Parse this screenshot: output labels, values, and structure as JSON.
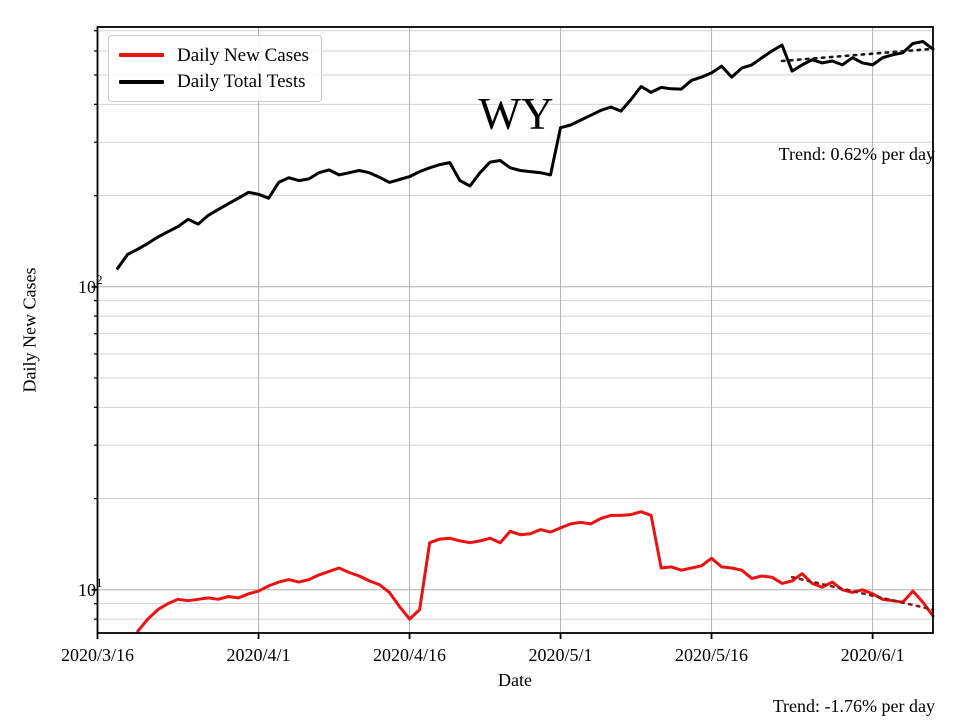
{
  "chart_data": {
    "type": "line",
    "title": "WY",
    "xlabel": "Date",
    "ylabel": "Daily New Cases",
    "yscale": "log",
    "ylim": [
      7.2,
      720
    ],
    "xlim_days": [
      0,
      83
    ],
    "x_start_date": "2020/3/16",
    "x_end_date": "2020/6/7",
    "grid": true,
    "legend_position": "upper left",
    "x_ticks": [
      {
        "label": "2020/3/16",
        "day": 0
      },
      {
        "label": "2020/4/1",
        "day": 16
      },
      {
        "label": "2020/4/16",
        "day": 31
      },
      {
        "label": "2020/5/1",
        "day": 46
      },
      {
        "label": "2020/5/16",
        "day": 61
      },
      {
        "label": "2020/6/1",
        "day": 77
      }
    ],
    "y_major_ticks": [
      {
        "value": 10,
        "base": "10",
        "exponent": "1"
      },
      {
        "value": 100,
        "base": "10",
        "exponent": "2"
      }
    ],
    "y_minor_ticks": [
      8,
      9,
      20,
      30,
      40,
      50,
      60,
      70,
      80,
      90,
      200,
      300,
      400,
      500,
      600,
      700
    ],
    "series": [
      {
        "name": "Daily New Cases",
        "color": "#ee1111",
        "width": 3,
        "style": "solid",
        "x0": 4,
        "y": [
          7.3,
          8.0,
          8.6,
          9.0,
          9.3,
          9.2,
          9.3,
          9.4,
          9.3,
          9.5,
          9.4,
          9.7,
          9.9,
          10.3,
          10.6,
          10.8,
          10.6,
          10.8,
          11.2,
          11.5,
          11.8,
          11.4,
          11.1,
          10.7,
          10.4,
          9.8,
          8.8,
          8.0,
          8.6,
          14.3,
          14.7,
          14.8,
          14.5,
          14.3,
          14.5,
          14.8,
          14.3,
          15.6,
          15.2,
          15.3,
          15.8,
          15.5,
          16.0,
          16.5,
          16.7,
          16.5,
          17.2,
          17.6,
          17.6,
          17.7,
          18.1,
          17.6,
          11.8,
          11.9,
          11.6,
          11.8,
          12.0,
          12.7,
          11.9,
          11.8,
          11.6,
          10.9,
          11.1,
          11.0,
          10.5,
          10.7,
          11.3,
          10.5,
          10.2,
          10.6,
          10.0,
          9.8,
          10.0,
          9.7,
          9.3,
          9.2,
          9.1,
          9.9,
          9.1,
          8.2
        ]
      },
      {
        "name": "Daily Total Tests",
        "color": "#000000",
        "width": 3,
        "style": "solid",
        "x0": 2,
        "y": [
          115,
          128,
          133,
          139,
          146,
          152,
          158,
          167,
          161,
          172,
          180,
          188,
          196,
          205,
          202,
          196,
          221,
          229,
          224,
          227,
          238,
          243,
          234,
          238,
          242,
          238,
          230,
          221,
          226,
          231,
          240,
          247,
          253,
          257,
          224,
          215,
          238,
          258,
          261,
          247,
          242,
          240,
          238,
          234,
          335,
          342,
          355,
          368,
          382,
          392,
          380,
          415,
          458,
          438,
          455,
          450,
          449,
          480,
          492,
          508,
          535,
          492,
          527,
          540,
          570,
          600,
          628,
          515,
          540,
          561,
          548,
          556,
          540,
          570,
          548,
          540,
          570,
          583,
          592,
          635,
          645,
          608
        ]
      },
      {
        "name": "Daily Total Tests trend",
        "color": "#1a1a1a",
        "width": 2.6,
        "style": "dotted",
        "x": [
          68,
          83
        ],
        "y": [
          556,
          610
        ]
      },
      {
        "name": "Daily New Cases trend",
        "color": "#8b1a1a",
        "width": 2.6,
        "style": "dotted",
        "x": [
          69,
          83
        ],
        "y": [
          11.0,
          8.6
        ]
      }
    ],
    "annotations": [
      {
        "id": "tests-trend-label",
        "text": "Trend: 0.62% per day",
        "position": "right-of-plot-upper"
      },
      {
        "id": "cases-trend-label",
        "text": "Trend: -1.76% per day",
        "position": "below-plot-right"
      }
    ]
  },
  "colors": {
    "cases_line": "#ee1111",
    "tests_line": "#000000",
    "grid_major": "#b0b0b0",
    "grid_minor": "#d2d2d2",
    "axis": "#000000"
  }
}
